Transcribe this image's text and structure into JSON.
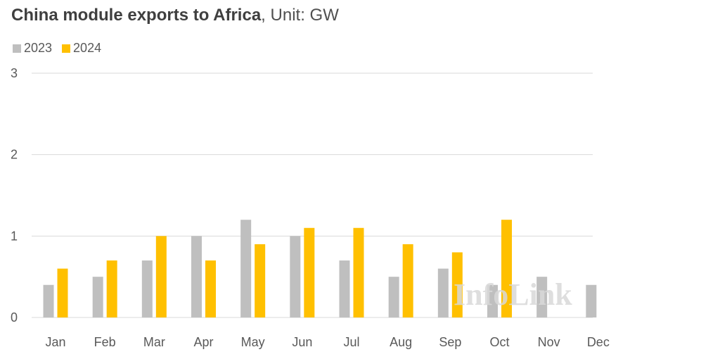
{
  "header": {
    "title": "China module exports to Africa",
    "subtitle": ", Unit: GW"
  },
  "watermark": "InfoLink",
  "colors": {
    "series_2023": "#bfbfbf",
    "series_2024": "#ffc000",
    "gridline": "#d9d9d9",
    "axis_text": "#595959"
  },
  "chart_data": {
    "type": "bar",
    "title": "China module exports to Africa",
    "subtitle": ", Unit: GW",
    "xlabel": "",
    "ylabel": "",
    "categories": [
      "Jan",
      "Feb",
      "Mar",
      "Apr",
      "May",
      "Jun",
      "Jul",
      "Aug",
      "Sep",
      "Oct",
      "Nov",
      "Dec"
    ],
    "series": [
      {
        "name": "2023",
        "color": "#bfbfbf",
        "values": [
          0.4,
          0.5,
          0.7,
          1.0,
          1.2,
          1.0,
          0.7,
          0.5,
          0.6,
          0.4,
          0.5,
          0.4
        ]
      },
      {
        "name": "2024",
        "color": "#ffc000",
        "values": [
          0.6,
          0.7,
          1.0,
          0.7,
          0.9,
          1.1,
          1.1,
          0.9,
          0.8,
          1.2,
          null,
          null
        ]
      }
    ],
    "ylim": [
      0,
      3
    ],
    "yticks": [
      "0",
      "1",
      "2",
      "3"
    ],
    "grid": true,
    "legend_position": "top-left"
  }
}
